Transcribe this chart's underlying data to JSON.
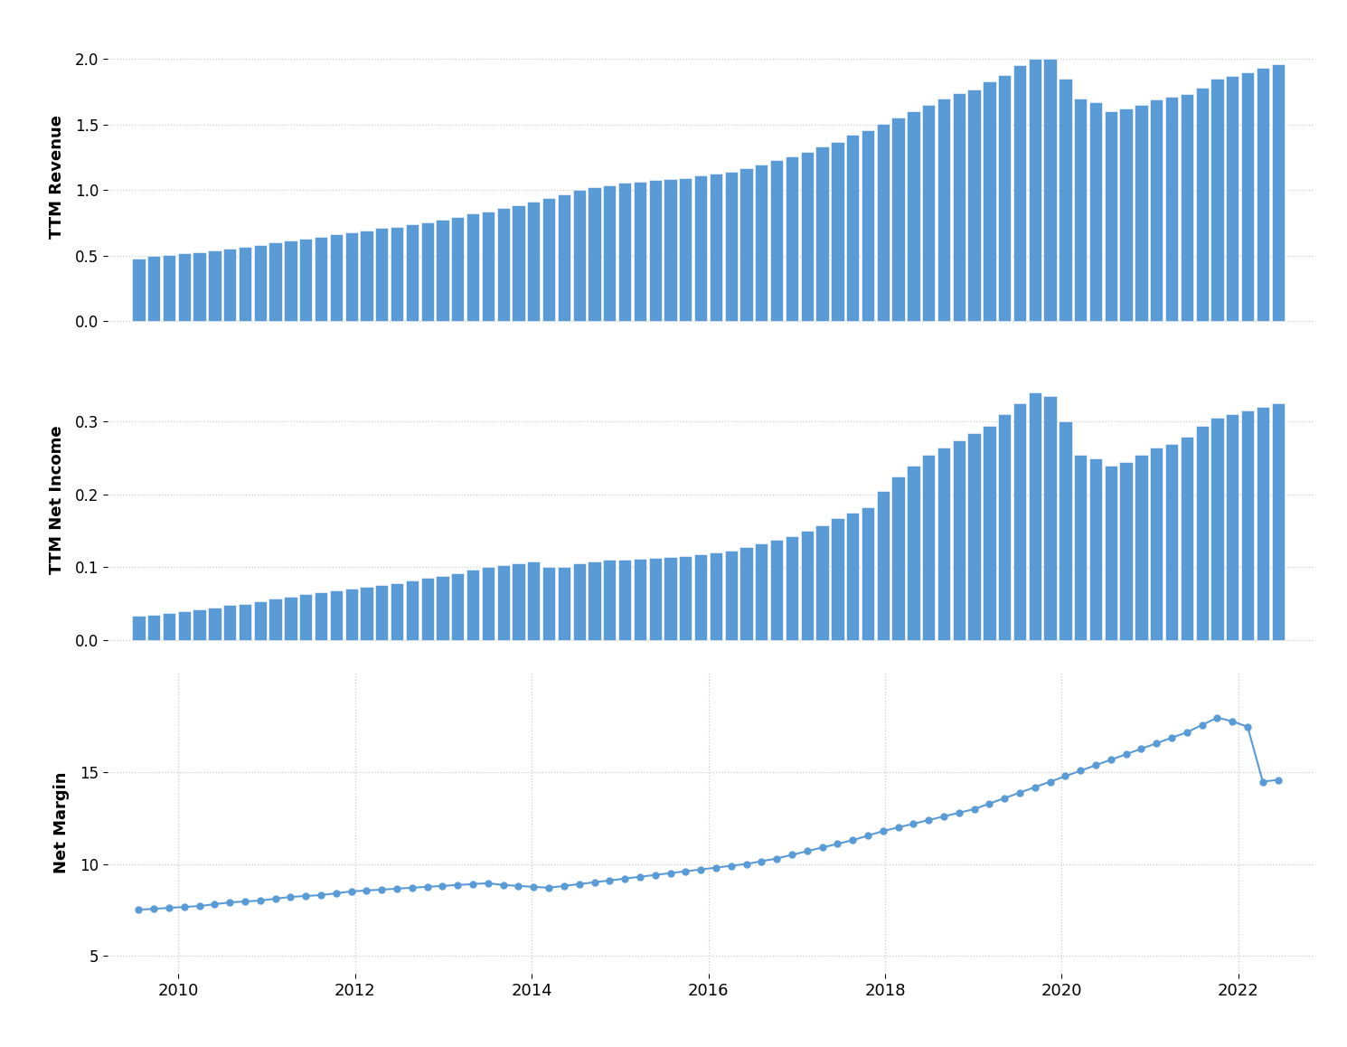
{
  "revenue": [
    0.482,
    0.496,
    0.509,
    0.519,
    0.529,
    0.543,
    0.557,
    0.568,
    0.581,
    0.6,
    0.618,
    0.63,
    0.647,
    0.666,
    0.68,
    0.693,
    0.71,
    0.723,
    0.74,
    0.757,
    0.775,
    0.795,
    0.82,
    0.84,
    0.865,
    0.888,
    0.91,
    0.94,
    0.97,
    1.0,
    1.02,
    1.04,
    1.06,
    1.065,
    1.075,
    1.085,
    1.095,
    1.11,
    1.125,
    1.14,
    1.165,
    1.195,
    1.23,
    1.26,
    1.295,
    1.33,
    1.37,
    1.42,
    1.46,
    1.505,
    1.555,
    1.605,
    1.65,
    1.7,
    1.74,
    1.77,
    1.83,
    1.88,
    1.95,
    2.0,
    2.0,
    1.85,
    1.7,
    1.67,
    1.6,
    1.62,
    1.65,
    1.69,
    1.71,
    1.73,
    1.78,
    1.85,
    1.87,
    1.9,
    1.935,
    1.96
  ],
  "net_income": [
    0.033,
    0.035,
    0.037,
    0.04,
    0.042,
    0.045,
    0.048,
    0.05,
    0.053,
    0.057,
    0.06,
    0.063,
    0.065,
    0.068,
    0.07,
    0.073,
    0.075,
    0.078,
    0.082,
    0.085,
    0.088,
    0.092,
    0.097,
    0.1,
    0.103,
    0.105,
    0.108,
    0.1,
    0.1,
    0.105,
    0.108,
    0.11,
    0.11,
    0.112,
    0.113,
    0.114,
    0.115,
    0.118,
    0.12,
    0.123,
    0.128,
    0.133,
    0.138,
    0.143,
    0.15,
    0.158,
    0.167,
    0.175,
    0.183,
    0.205,
    0.225,
    0.24,
    0.255,
    0.265,
    0.275,
    0.285,
    0.295,
    0.31,
    0.325,
    0.34,
    0.335,
    0.3,
    0.255,
    0.25,
    0.24,
    0.245,
    0.255,
    0.265,
    0.27,
    0.28,
    0.295,
    0.305,
    0.31,
    0.315,
    0.32,
    0.325
  ],
  "net_margin": [
    7.5,
    7.55,
    7.6,
    7.65,
    7.7,
    7.8,
    7.9,
    7.95,
    8.0,
    8.1,
    8.2,
    8.25,
    8.3,
    8.4,
    8.5,
    8.55,
    8.6,
    8.65,
    8.7,
    8.75,
    8.8,
    8.85,
    8.9,
    8.95,
    8.85,
    8.8,
    8.75,
    8.7,
    8.8,
    8.9,
    9.0,
    9.1,
    9.2,
    9.3,
    9.4,
    9.5,
    9.6,
    9.7,
    9.8,
    9.9,
    10.0,
    10.15,
    10.3,
    10.5,
    10.7,
    10.9,
    11.1,
    11.3,
    11.55,
    11.8,
    12.0,
    12.2,
    12.4,
    12.6,
    12.8,
    13.0,
    13.3,
    13.6,
    13.9,
    14.2,
    14.5,
    14.8,
    15.1,
    15.4,
    15.7,
    16.0,
    16.3,
    16.6,
    16.9,
    17.2,
    17.6,
    18.0,
    17.8,
    17.5,
    14.5,
    14.6
  ],
  "bar_color": "#5b9bd5",
  "line_color": "#5b9bd5",
  "background_color": "#ffffff",
  "grid_color": "#cccccc",
  "ylabel1": "TTM Revenue",
  "ylabel2": "TTM Net Income",
  "ylabel3": "Net Margin",
  "yticks1": [
    0.0,
    0.5,
    1.0,
    1.5,
    2.0
  ],
  "yticks2": [
    0.0,
    0.1,
    0.2,
    0.3
  ],
  "yticks3": [
    5,
    10,
    15
  ],
  "ylim1": [
    -0.05,
    2.25
  ],
  "ylim2": [
    -0.015,
    0.4
  ],
  "ylim3": [
    4.0,
    20.5
  ],
  "xlim": [
    2009.2,
    2022.85
  ],
  "x_start": 2009.55,
  "x_end": 2022.45,
  "xtick_years": [
    2010,
    2012,
    2014,
    2016,
    2018,
    2020,
    2022
  ]
}
